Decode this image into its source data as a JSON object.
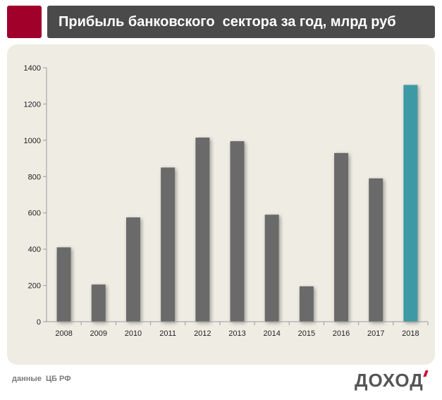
{
  "colors": {
    "bar": "#6b6b6b",
    "highlight": "#3e9aa4",
    "panel": "#efece3",
    "title_bg": "#4a4a4a",
    "logo_square": "#a0002a",
    "brand_tick": "#c8102e"
  },
  "header": {
    "title": "Прибыль банковского  сектора за год, млрд руб"
  },
  "footer": {
    "source": "данные  ЦБ РФ",
    "brand": "ДОХОД"
  },
  "chart_data": {
    "type": "bar",
    "title": "Прибыль банковского  сектора за год, млрд руб",
    "categories": [
      "2008",
      "2009",
      "2010",
      "2011",
      "2012",
      "2013",
      "2014",
      "2015",
      "2016",
      "2017",
      "2018"
    ],
    "values": [
      410,
      205,
      575,
      850,
      1015,
      995,
      590,
      195,
      930,
      790,
      1305
    ],
    "highlight_category": "2018",
    "ylim": [
      0,
      1400
    ],
    "yticks": [
      0,
      200,
      400,
      600,
      800,
      1000,
      1200,
      1400
    ],
    "grid": false,
    "legend": "none"
  }
}
